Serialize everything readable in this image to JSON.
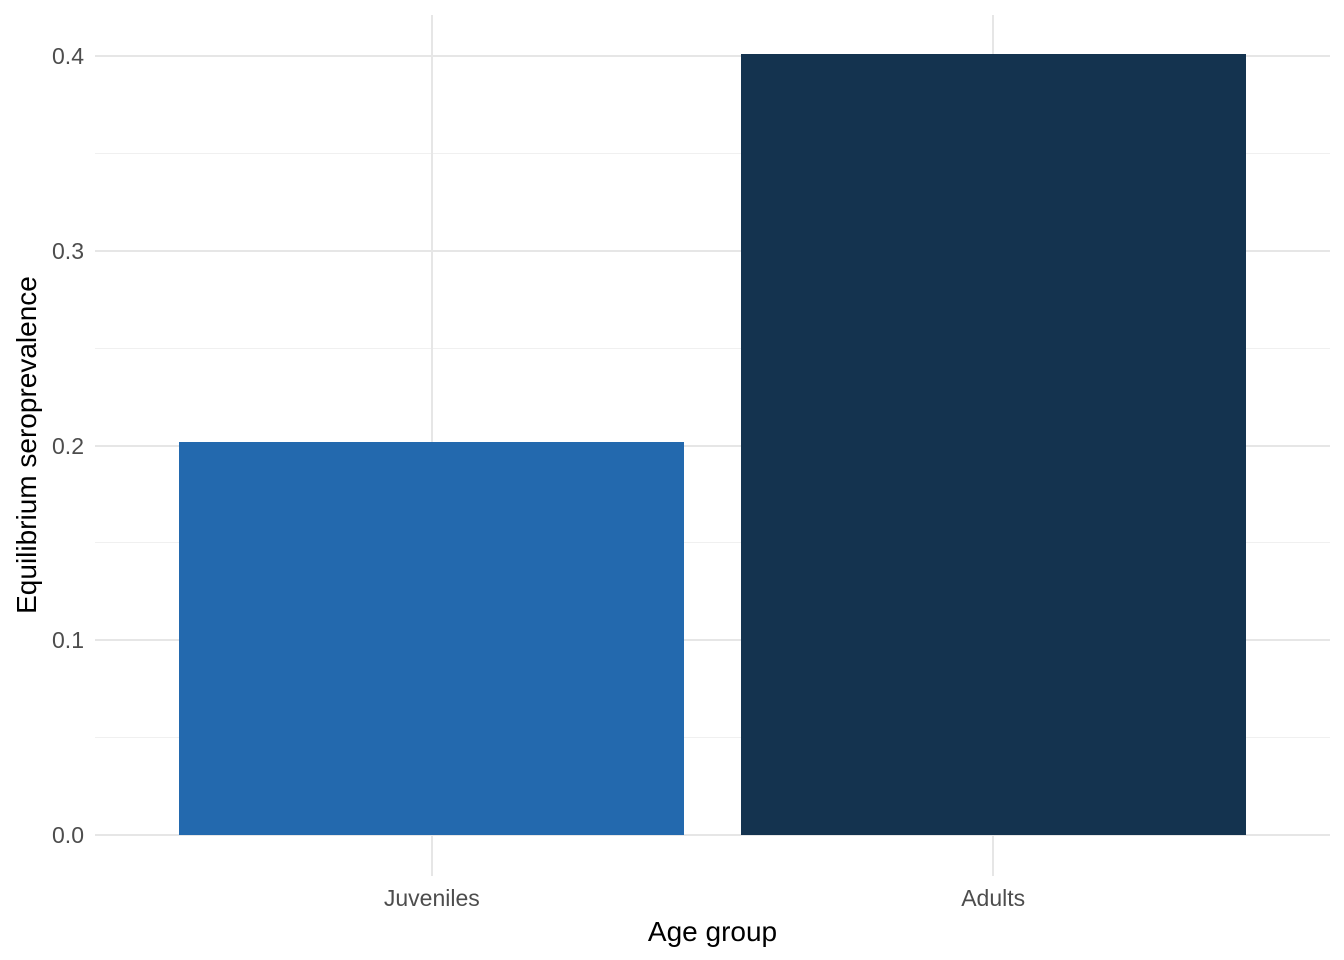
{
  "chart_data": {
    "type": "bar",
    "categories": [
      "Juveniles",
      "Adults"
    ],
    "values": [
      0.202,
      0.401
    ],
    "bar_colors": [
      "#2369ae",
      "#14334f"
    ],
    "title": "",
    "xlabel": "Age group",
    "ylabel": "Equilibrium seroprevalence",
    "ylim": [
      -0.021,
      0.421
    ],
    "yticks": [
      0.0,
      0.1,
      0.2,
      0.3,
      0.4
    ],
    "ytick_labels": [
      "0.0",
      "0.1",
      "0.2",
      "0.3",
      "0.4"
    ],
    "yticks_minor": [
      0.05,
      0.15,
      0.25,
      0.35
    ],
    "grid": true,
    "legend": false,
    "background": "#ffffff",
    "grid_major_color": "#e6e6e6",
    "grid_minor_color": "#f0f0f0",
    "tick_label_color": "#4d4d4d",
    "axis_title_color": "#000000"
  }
}
